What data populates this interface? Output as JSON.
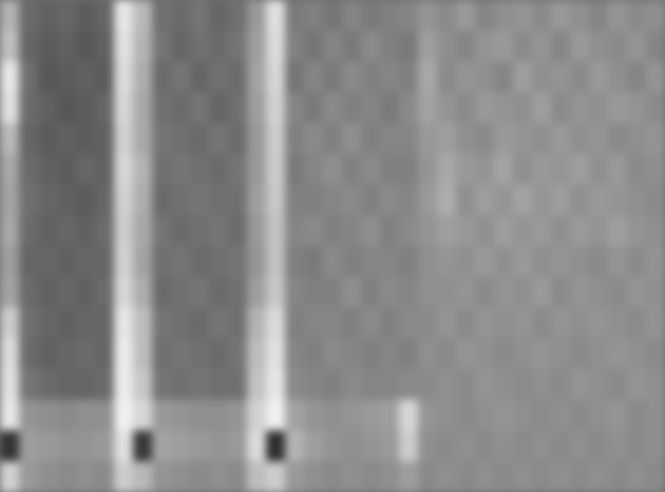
{
  "chart_data": {
    "type": "heatmap",
    "tick_labels": false,
    "zlim": [
      0,
      100
    ],
    "cells": [
      [
        70,
        42,
        38,
        40,
        36,
        40,
        90,
        72,
        44,
        42,
        46,
        40,
        44,
        60,
        88,
        48,
        50,
        46,
        52,
        48,
        50,
        52,
        58,
        54,
        60,
        52,
        56,
        58,
        54,
        60,
        56,
        52,
        58,
        54,
        56
      ],
      [
        75,
        40,
        36,
        38,
        34,
        38,
        88,
        70,
        46,
        40,
        44,
        42,
        46,
        62,
        86,
        50,
        46,
        52,
        48,
        54,
        50,
        48,
        62,
        56,
        52,
        58,
        60,
        54,
        58,
        52,
        60,
        56,
        54,
        58,
        52
      ],
      [
        90,
        44,
        34,
        36,
        38,
        36,
        86,
        68,
        42,
        46,
        40,
        44,
        42,
        64,
        84,
        46,
        52,
        48,
        54,
        50,
        52,
        50,
        66,
        54,
        58,
        56,
        52,
        62,
        56,
        58,
        54,
        60,
        56,
        52,
        58
      ],
      [
        88,
        42,
        38,
        34,
        36,
        40,
        84,
        66,
        44,
        42,
        46,
        40,
        44,
        62,
        82,
        52,
        48,
        54,
        50,
        52,
        48,
        54,
        64,
        58,
        54,
        60,
        58,
        56,
        62,
        54,
        58,
        56,
        60,
        58,
        54
      ],
      [
        72,
        40,
        36,
        38,
        36,
        38,
        82,
        66,
        46,
        44,
        42,
        46,
        42,
        60,
        80,
        50,
        54,
        50,
        56,
        50,
        52,
        52,
        60,
        62,
        56,
        54,
        60,
        58,
        56,
        60,
        56,
        58,
        54,
        56,
        58
      ],
      [
        66,
        42,
        38,
        36,
        40,
        38,
        84,
        70,
        44,
        46,
        44,
        42,
        46,
        60,
        80,
        48,
        52,
        56,
        50,
        54,
        50,
        50,
        58,
        66,
        60,
        58,
        64,
        56,
        60,
        58,
        62,
        56,
        60,
        54,
        56
      ],
      [
        64,
        44,
        40,
        38,
        36,
        40,
        82,
        68,
        42,
        44,
        46,
        44,
        44,
        62,
        78,
        50,
        50,
        52,
        54,
        50,
        54,
        52,
        60,
        68,
        56,
        62,
        58,
        64,
        58,
        62,
        56,
        60,
        58,
        56,
        54
      ],
      [
        66,
        42,
        38,
        40,
        38,
        42,
        80,
        66,
        46,
        42,
        44,
        46,
        42,
        60,
        76,
        52,
        54,
        50,
        52,
        56,
        50,
        54,
        58,
        62,
        60,
        56,
        62,
        58,
        60,
        56,
        60,
        58,
        62,
        58,
        56
      ],
      [
        62,
        40,
        40,
        38,
        40,
        40,
        82,
        64,
        44,
        46,
        42,
        44,
        46,
        58,
        76,
        50,
        48,
        54,
        50,
        52,
        52,
        50,
        56,
        58,
        56,
        60,
        56,
        60,
        56,
        58,
        56,
        54,
        58,
        54,
        58
      ],
      [
        64,
        42,
        38,
        40,
        38,
        42,
        84,
        68,
        42,
        44,
        46,
        42,
        44,
        62,
        78,
        52,
        50,
        50,
        56,
        50,
        54,
        52,
        56,
        56,
        58,
        54,
        58,
        56,
        60,
        54,
        58,
        56,
        54,
        58,
        56
      ],
      [
        80,
        44,
        40,
        38,
        40,
        40,
        90,
        74,
        46,
        44,
        42,
        46,
        44,
        70,
        86,
        50,
        52,
        52,
        50,
        54,
        50,
        54,
        54,
        58,
        54,
        58,
        56,
        58,
        54,
        58,
        56,
        58,
        56,
        54,
        58
      ],
      [
        86,
        42,
        38,
        40,
        42,
        40,
        92,
        74,
        44,
        46,
        44,
        42,
        46,
        74,
        88,
        52,
        50,
        54,
        52,
        50,
        52,
        50,
        56,
        54,
        58,
        56,
        54,
        56,
        58,
        56,
        54,
        56,
        58,
        56,
        54
      ],
      [
        88,
        46,
        42,
        40,
        40,
        42,
        92,
        78,
        46,
        44,
        46,
        44,
        44,
        76,
        90,
        54,
        52,
        50,
        54,
        52,
        52,
        54,
        54,
        56,
        54,
        58,
        56,
        54,
        56,
        54,
        58,
        56,
        54,
        58,
        56
      ],
      [
        90,
        58,
        56,
        54,
        56,
        56,
        94,
        84,
        60,
        58,
        56,
        56,
        58,
        82,
        94,
        64,
        58,
        56,
        58,
        60,
        62,
        84,
        58,
        56,
        54,
        56,
        58,
        56,
        54,
        56,
        54,
        56,
        58,
        54,
        56
      ],
      [
        20,
        62,
        60,
        58,
        58,
        60,
        88,
        22,
        64,
        62,
        60,
        58,
        60,
        86,
        18,
        70,
        62,
        58,
        56,
        58,
        60,
        80,
        56,
        54,
        56,
        54,
        56,
        54,
        56,
        54,
        56,
        54,
        56,
        54,
        56
      ],
      [
        82,
        60,
        56,
        54,
        56,
        54,
        80,
        72,
        58,
        56,
        54,
        56,
        54,
        74,
        80,
        60,
        56,
        54,
        56,
        54,
        56,
        62,
        54,
        56,
        54,
        56,
        54,
        56,
        54,
        56,
        54,
        56,
        54,
        56,
        54
      ]
    ]
  }
}
